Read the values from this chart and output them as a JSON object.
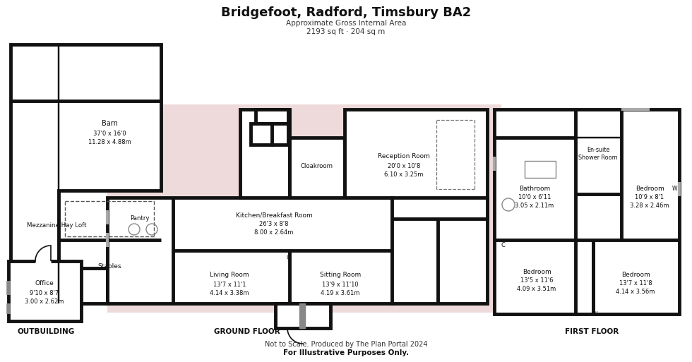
{
  "title": "Bridgefoot, Radford, Timsbury BA2",
  "subtitle1": "Approximate Gross Internal Area",
  "subtitle2": "2193 sq ft · 204 sq m",
  "footer1": "Not to Scale. Produced by The Plan Portal 2024",
  "footer2": "For Illustrative Purposes Only.",
  "bg": "#ffffff",
  "wall": "#111111",
  "pink": "#d4a0a0",
  "pink_alpha": 0.38,
  "wlw": 3.5
}
